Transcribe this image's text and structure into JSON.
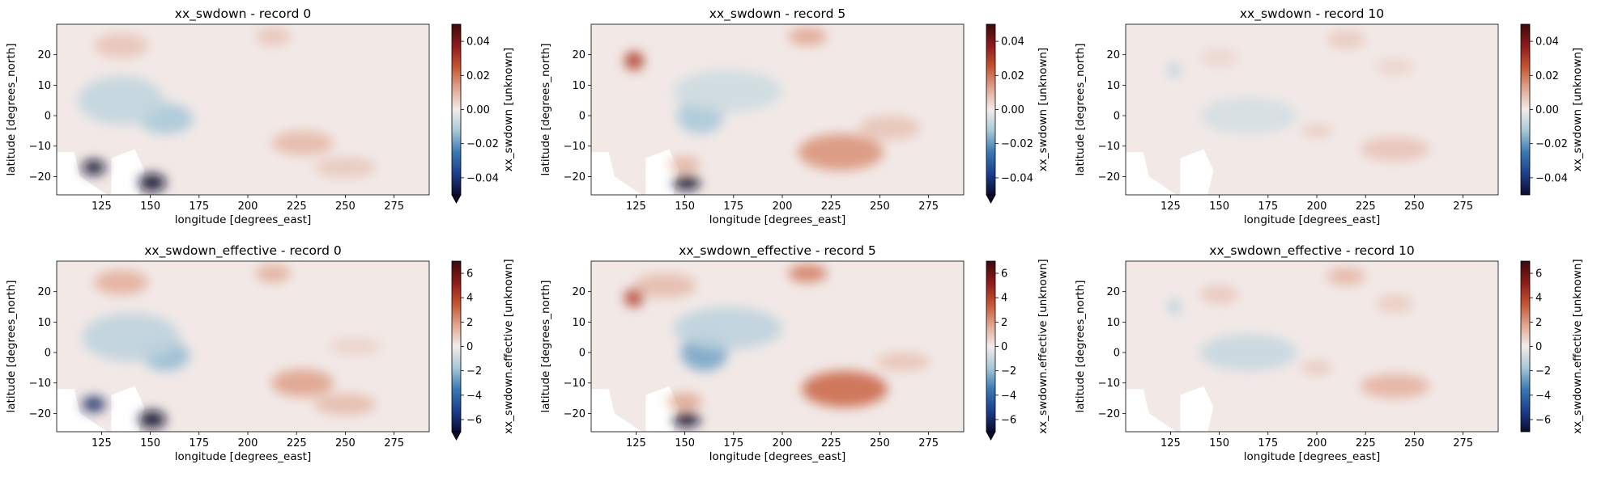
{
  "chart_data": [
    {
      "type": "heatmap",
      "title": "xx_swdown - record 0",
      "xlabel": "longitude [degrees_east]",
      "ylabel": "latitude [degrees_north]",
      "xlim": [
        102,
        293
      ],
      "ylim": [
        -26,
        30
      ],
      "xticks": [
        125,
        150,
        175,
        200,
        225,
        250,
        275
      ],
      "yticks": [
        -20,
        -10,
        0,
        10,
        20
      ],
      "colorbar": {
        "label": "xx_swdown [unknown]",
        "range": [
          -0.05,
          0.05
        ],
        "ticks": [
          "0.04",
          "0.02",
          "0.00",
          "−0.02",
          "−0.04"
        ],
        "tick_values": [
          0.04,
          0.02,
          0,
          -0.02,
          -0.04
        ],
        "extend": "min"
      },
      "blobs": [
        {
          "x": 121,
          "y": -17,
          "v": -0.05,
          "rx": 6,
          "ry": 2.5
        },
        {
          "x": 151,
          "y": -22,
          "v": -0.05,
          "rx": 7,
          "ry": 3
        },
        {
          "x": 158,
          "y": -1,
          "v": -0.012,
          "rx": 14,
          "ry": 5
        },
        {
          "x": 135,
          "y": 5,
          "v": -0.008,
          "rx": 22,
          "ry": 8
        },
        {
          "x": 228,
          "y": -9,
          "v": 0.009,
          "rx": 16,
          "ry": 4
        },
        {
          "x": 250,
          "y": -17,
          "v": 0.006,
          "rx": 16,
          "ry": 3.5
        },
        {
          "x": 135,
          "y": 23,
          "v": 0.007,
          "rx": 14,
          "ry": 4
        },
        {
          "x": 213,
          "y": 26,
          "v": 0.007,
          "rx": 9,
          "ry": 3
        }
      ]
    },
    {
      "type": "heatmap",
      "title": "xx_swdown - record 5",
      "xlabel": "longitude [degrees_east]",
      "ylabel": "latitude [degrees_north]",
      "xlim": [
        102,
        293
      ],
      "ylim": [
        -26,
        30
      ],
      "xticks": [
        125,
        150,
        175,
        200,
        225,
        250,
        275
      ],
      "yticks": [
        -20,
        -10,
        0,
        10,
        20
      ],
      "colorbar": {
        "label": "xx_swdown [unknown]",
        "range": [
          -0.05,
          0.05
        ],
        "ticks": [
          "0.04",
          "0.02",
          "0.00",
          "−0.02",
          "−0.04"
        ],
        "tick_values": [
          0.04,
          0.02,
          0,
          -0.02,
          -0.04
        ],
        "extend": "min"
      },
      "blobs": [
        {
          "x": 151,
          "y": -22,
          "v": -0.05,
          "rx": 7,
          "ry": 2.5
        },
        {
          "x": 124,
          "y": 18,
          "v": 0.03,
          "rx": 5,
          "ry": 3
        },
        {
          "x": 158,
          "y": 0,
          "v": -0.012,
          "rx": 12,
          "ry": 6
        },
        {
          "x": 172,
          "y": 8,
          "v": -0.006,
          "rx": 28,
          "ry": 7
        },
        {
          "x": 230,
          "y": -12,
          "v": 0.015,
          "rx": 22,
          "ry": 6
        },
        {
          "x": 213,
          "y": 26,
          "v": 0.012,
          "rx": 10,
          "ry": 3
        },
        {
          "x": 255,
          "y": -4,
          "v": 0.007,
          "rx": 16,
          "ry": 4
        },
        {
          "x": 150,
          "y": -16,
          "v": 0.01,
          "rx": 8,
          "ry": 2.5
        }
      ]
    },
    {
      "type": "heatmap",
      "title": "xx_swdown - record 10",
      "xlabel": "longitude [degrees_east]",
      "ylabel": "latitude [degrees_north]",
      "xlim": [
        102,
        293
      ],
      "ylim": [
        -26,
        30
      ],
      "xticks": [
        125,
        150,
        175,
        200,
        225,
        250,
        275
      ],
      "yticks": [
        -20,
        -10,
        0,
        10,
        20
      ],
      "colorbar": {
        "label": "xx_swdown [unknown]",
        "range": [
          -0.05,
          0.05
        ],
        "ticks": [
          "0.04",
          "0.02",
          "0.00",
          "−0.02",
          "−0.04"
        ],
        "tick_values": [
          0.04,
          0.02,
          0,
          -0.02,
          -0.04
        ],
        "extend": "neither"
      },
      "blobs": [
        {
          "x": 127,
          "y": 15,
          "v": -0.01,
          "rx": 3,
          "ry": 2.5
        },
        {
          "x": 165,
          "y": 0,
          "v": -0.005,
          "rx": 25,
          "ry": 6
        },
        {
          "x": 240,
          "y": -11,
          "v": 0.007,
          "rx": 18,
          "ry": 4
        },
        {
          "x": 215,
          "y": 25,
          "v": 0.006,
          "rx": 10,
          "ry": 3
        },
        {
          "x": 200,
          "y": -5,
          "v": 0.006,
          "rx": 8,
          "ry": 2
        },
        {
          "x": 150,
          "y": 19,
          "v": 0.004,
          "rx": 10,
          "ry": 3
        },
        {
          "x": 240,
          "y": 16,
          "v": 0.004,
          "rx": 10,
          "ry": 3
        }
      ]
    },
    {
      "type": "heatmap",
      "title": "xx_swdown_effective - record 0",
      "xlabel": "longitude [degrees_east]",
      "ylabel": "latitude [degrees_north]",
      "xlim": [
        102,
        293
      ],
      "ylim": [
        -26,
        30
      ],
      "xticks": [
        125,
        150,
        175,
        200,
        225,
        250,
        275
      ],
      "yticks": [
        -20,
        -10,
        0,
        10,
        20
      ],
      "colorbar": {
        "label": "xx_swdown.effective [unknown]",
        "range": [
          -7,
          7
        ],
        "ticks": [
          "6",
          "4",
          "2",
          "0",
          "−2",
          "−4",
          "−6"
        ],
        "tick_values": [
          6,
          4,
          2,
          0,
          -2,
          -4,
          -6
        ],
        "extend": "min"
      },
      "blobs": [
        {
          "x": 121,
          "y": -17,
          "v": -6,
          "rx": 6,
          "ry": 2.5
        },
        {
          "x": 151,
          "y": -22,
          "v": -7,
          "rx": 7,
          "ry": 3
        },
        {
          "x": 158,
          "y": -1,
          "v": -2,
          "rx": 12,
          "ry": 5
        },
        {
          "x": 140,
          "y": 5,
          "v": -1.2,
          "rx": 25,
          "ry": 8
        },
        {
          "x": 228,
          "y": -10,
          "v": 1.8,
          "rx": 16,
          "ry": 4.5
        },
        {
          "x": 250,
          "y": -17,
          "v": 1.2,
          "rx": 16,
          "ry": 3.5
        },
        {
          "x": 135,
          "y": 23,
          "v": 1.5,
          "rx": 14,
          "ry": 4
        },
        {
          "x": 213,
          "y": 26,
          "v": 1.5,
          "rx": 9,
          "ry": 3
        },
        {
          "x": 255,
          "y": 2,
          "v": 0.6,
          "rx": 14,
          "ry": 3
        }
      ]
    },
    {
      "type": "heatmap",
      "title": "xx_swdown_effective - record 5",
      "xlabel": "longitude [degrees_east]",
      "ylabel": "latitude [degrees_north]",
      "xlim": [
        102,
        293
      ],
      "ylim": [
        -26,
        30
      ],
      "xticks": [
        125,
        150,
        175,
        200,
        225,
        250,
        275
      ],
      "yticks": [
        -20,
        -10,
        0,
        10,
        20
      ],
      "colorbar": {
        "label": "xx_swdown.effective [unknown]",
        "range": [
          -7,
          7
        ],
        "ticks": [
          "6",
          "4",
          "2",
          "0",
          "−2",
          "−4",
          "−6"
        ],
        "tick_values": [
          6,
          4,
          2,
          0,
          -2,
          -4,
          -6
        ],
        "extend": "min"
      },
      "blobs": [
        {
          "x": 151,
          "y": -22,
          "v": -7,
          "rx": 7,
          "ry": 2.5
        },
        {
          "x": 124,
          "y": 18,
          "v": 4,
          "rx": 5,
          "ry": 3
        },
        {
          "x": 160,
          "y": 0,
          "v": -2.5,
          "rx": 12,
          "ry": 6
        },
        {
          "x": 172,
          "y": 8,
          "v": -1.2,
          "rx": 28,
          "ry": 7
        },
        {
          "x": 232,
          "y": -12,
          "v": 3,
          "rx": 22,
          "ry": 6
        },
        {
          "x": 213,
          "y": 26,
          "v": 2.5,
          "rx": 10,
          "ry": 3
        },
        {
          "x": 150,
          "y": -16,
          "v": 1.8,
          "rx": 9,
          "ry": 2.5
        },
        {
          "x": 140,
          "y": 22,
          "v": 1.2,
          "rx": 16,
          "ry": 4
        },
        {
          "x": 262,
          "y": -3,
          "v": 1,
          "rx": 14,
          "ry": 3
        }
      ]
    },
    {
      "type": "heatmap",
      "title": "xx_swdown_effective - record 10",
      "xlabel": "longitude [degrees_east]",
      "ylabel": "latitude [degrees_north]",
      "xlim": [
        102,
        293
      ],
      "ylim": [
        -26,
        30
      ],
      "xticks": [
        125,
        150,
        175,
        200,
        225,
        250,
        275
      ],
      "yticks": [
        -20,
        -10,
        0,
        10,
        20
      ],
      "colorbar": {
        "label": "xx_swdown.effective [unknown]",
        "range": [
          -7,
          7
        ],
        "ticks": [
          "6",
          "4",
          "2",
          "0",
          "−2",
          "−4",
          "−6"
        ],
        "tick_values": [
          6,
          4,
          2,
          0,
          -2,
          -4,
          -6
        ],
        "extend": "neither"
      },
      "blobs": [
        {
          "x": 127,
          "y": 15,
          "v": -1.5,
          "rx": 3,
          "ry": 2.5
        },
        {
          "x": 165,
          "y": 0,
          "v": -1,
          "rx": 25,
          "ry": 6
        },
        {
          "x": 240,
          "y": -11,
          "v": 1.4,
          "rx": 18,
          "ry": 4
        },
        {
          "x": 215,
          "y": 25,
          "v": 1.3,
          "rx": 10,
          "ry": 3
        },
        {
          "x": 200,
          "y": -5,
          "v": 1,
          "rx": 8,
          "ry": 2
        },
        {
          "x": 150,
          "y": 19,
          "v": 0.9,
          "rx": 10,
          "ry": 3
        },
        {
          "x": 240,
          "y": 16,
          "v": 0.8,
          "rx": 10,
          "ry": 3
        }
      ]
    }
  ],
  "colors": {
    "background": "#ffffff",
    "map_background": "#f2e9e7",
    "colormap_stops": [
      "#0a0b2e",
      "#1c3f8f",
      "#3a79b2",
      "#a7c8d8",
      "#f2ecea",
      "#e0a58f",
      "#c45432",
      "#8e1a1a",
      "#3b0a0c"
    ]
  }
}
